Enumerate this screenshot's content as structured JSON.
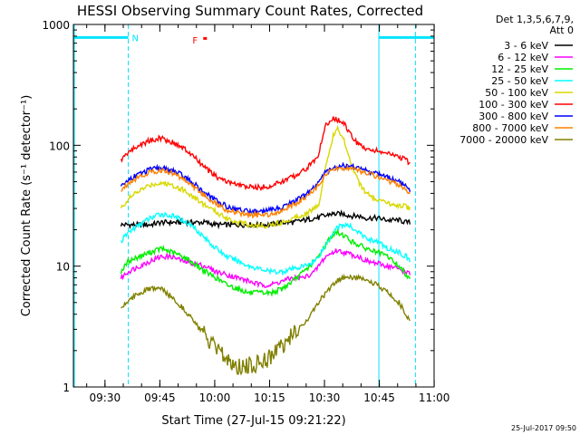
{
  "chart_data": {
    "type": "line",
    "title": "HESSI Observing Summary Count Rates, Corrected",
    "xlabel": "Start Time (27-Jul-15 09:21:22)",
    "ylabel": "Corrected Count Rate (s⁻¹ detector⁻¹)",
    "x_unit": "minutes after 09:21:22",
    "xlim": [
      0,
      98.6
    ],
    "ylim": [
      1,
      1000
    ],
    "yscale": "log",
    "grid": false,
    "legend_position": "right",
    "legend_header": [
      "Det 1,3,5,6,7,9,",
      "Att 0"
    ],
    "x_ticks": [
      {
        "value": 8.63,
        "label": "09:30"
      },
      {
        "value": 23.63,
        "label": "09:45"
      },
      {
        "value": 38.63,
        "label": "10:00"
      },
      {
        "value": 53.63,
        "label": "10:15"
      },
      {
        "value": 68.63,
        "label": "10:30"
      },
      {
        "value": 83.63,
        "label": "10:45"
      },
      {
        "value": 98.63,
        "label": "11:00"
      }
    ],
    "y_ticks": [
      {
        "value": 1,
        "label": "1"
      },
      {
        "value": 10,
        "label": "10"
      },
      {
        "value": 100,
        "label": "100"
      },
      {
        "value": 1000,
        "label": "1000"
      }
    ],
    "x": [
      13,
      15,
      18,
      21,
      24,
      27,
      30,
      33,
      36,
      39,
      42,
      45,
      48,
      51,
      54,
      57,
      60,
      63,
      66,
      67,
      68,
      69,
      70,
      71,
      72,
      74,
      76,
      78,
      80,
      83,
      86,
      89,
      91,
      92
    ],
    "series": [
      {
        "name": "3 - 6 keV",
        "color": "#000000",
        "values": [
          22,
          22,
          22,
          22,
          23,
          23,
          23,
          23,
          23,
          22,
          22,
          22,
          22,
          22,
          22,
          23,
          23,
          24,
          25,
          25,
          26,
          26,
          27,
          27,
          27,
          27,
          26,
          26,
          25,
          25,
          24,
          24,
          23,
          23
        ]
      },
      {
        "name": "6 - 12 keV",
        "color": "#ff00ff",
        "values": [
          8,
          9,
          10,
          11,
          12,
          12,
          11,
          10.5,
          10,
          9,
          8.5,
          8,
          7.5,
          7,
          7,
          7.5,
          8,
          8,
          9,
          10,
          11,
          12,
          12.5,
          13,
          13.5,
          13,
          12.5,
          12,
          11,
          10.5,
          10,
          9.5,
          9,
          8.5
        ]
      },
      {
        "name": "12 - 25 keV",
        "color": "#00ee00",
        "values": [
          9,
          11,
          12,
          13,
          14,
          13,
          12,
          10.5,
          9,
          8,
          7,
          6.5,
          6,
          6,
          6,
          6.5,
          7.5,
          9,
          11,
          12,
          13.5,
          15,
          17,
          18,
          19,
          18,
          16,
          15,
          14,
          13,
          12,
          10,
          8.5,
          8
        ]
      },
      {
        "name": "25 - 50 keV",
        "color": "#00ffff",
        "values": [
          16,
          19,
          22,
          25,
          27,
          26,
          24,
          21,
          17,
          14,
          12,
          11,
          10,
          9.5,
          9,
          9,
          9.5,
          10,
          11,
          12,
          13.5,
          15,
          17,
          19,
          21,
          22,
          21,
          19,
          17,
          16,
          14,
          13,
          12,
          11
        ]
      },
      {
        "name": "50 - 100 keV",
        "color": "#d8d800",
        "values": [
          30,
          36,
          42,
          47,
          49,
          47,
          43,
          37,
          32,
          28,
          25,
          23,
          22,
          21.5,
          22,
          23,
          25,
          27,
          30,
          32,
          45,
          70,
          90,
          120,
          140,
          110,
          70,
          50,
          40,
          35,
          33,
          32,
          31,
          30
        ]
      },
      {
        "name": "100 - 300 keV",
        "color": "#ff0000",
        "values": [
          75,
          88,
          100,
          110,
          115,
          106,
          95,
          80,
          65,
          55,
          50,
          47,
          45,
          45,
          46,
          50,
          55,
          62,
          75,
          85,
          110,
          145,
          160,
          165,
          165,
          150,
          120,
          100,
          95,
          90,
          85,
          80,
          75,
          70
        ]
      },
      {
        "name": "300 - 800 keV",
        "color": "#0000ff",
        "values": [
          45,
          52,
          58,
          63,
          65,
          62,
          56,
          48,
          40,
          35,
          31,
          29.5,
          28.5,
          28.5,
          29,
          31,
          34,
          38,
          45,
          50,
          55,
          60,
          63,
          65,
          67,
          68,
          67,
          65,
          62,
          58,
          54,
          50,
          46,
          43
        ]
      },
      {
        "name": "800 - 7000 keV",
        "color": "#ff8000",
        "values": [
          42,
          49,
          55,
          60,
          62,
          59,
          53,
          45,
          38,
          33,
          29,
          27.5,
          26.5,
          26.5,
          27,
          29,
          32,
          36,
          43,
          48,
          52,
          56,
          60,
          62,
          64,
          65,
          64,
          62,
          59,
          55,
          51,
          47,
          43,
          40
        ]
      },
      {
        "name": "7000 - 20000 keV",
        "color": "#808000",
        "values": [
          4.5,
          5.2,
          6,
          6.5,
          6.5,
          5.5,
          4.5,
          3.5,
          2.6,
          2,
          1.7,
          1.5,
          1.5,
          1.6,
          1.8,
          2.2,
          2.7,
          3.3,
          4.5,
          5,
          5.5,
          6,
          6.5,
          7,
          7.5,
          8,
          8,
          8,
          7.5,
          7,
          6,
          5,
          4,
          3.5
        ]
      }
    ],
    "markers": {
      "night_label": "N",
      "flare_label": "F",
      "night_intervals": [
        [
          -1,
          15
        ],
        [
          83.5,
          98.6
        ]
      ],
      "saa_dashed_lines": [
        15,
        93.5
      ],
      "saa_solid_line": 83.5,
      "flare_marker_x": 36,
      "flare_marker_y": 760,
      "bar_y": 780
    },
    "colors": {
      "markers": "#00e5ff",
      "flare": "#ff0000"
    }
  },
  "footer": {
    "timestamp": "25-Jul-2017 09:50"
  }
}
